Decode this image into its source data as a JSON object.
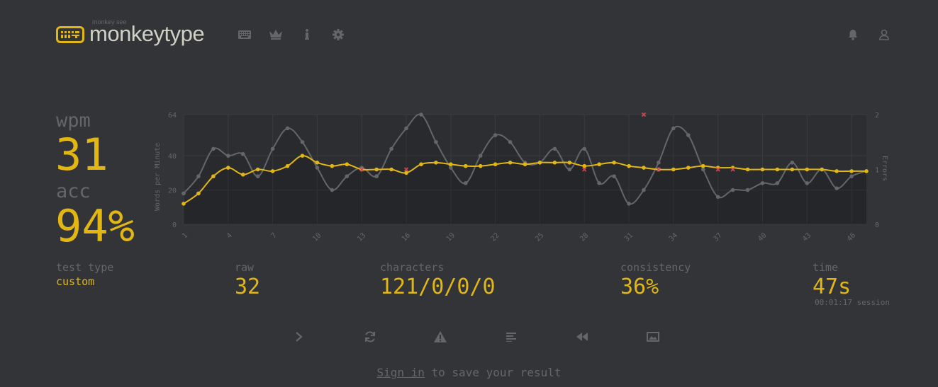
{
  "header": {
    "logo_small": "monkey see",
    "logo_text": "monkeytype",
    "nav": [
      "keyboard-icon",
      "crown-icon",
      "info-icon",
      "gear-icon"
    ],
    "right": [
      "bell-icon",
      "user-icon"
    ]
  },
  "stats": {
    "wpm_label": "wpm",
    "wpm_value": "31",
    "acc_label": "acc",
    "acc_value": "94%",
    "test_type_label": "test type",
    "test_type_value": "custom",
    "raw_label": "raw",
    "raw_value": "32",
    "characters_label": "characters",
    "characters_value": "121/0/0/0",
    "consistency_label": "consistency",
    "consistency_value": "36%",
    "time_label": "time",
    "time_value": "47s",
    "session_text": "00:01:17 session"
  },
  "chart_data": {
    "type": "line",
    "ylabel": "Words per Minute",
    "y2label": "Errors",
    "ylim": [
      0,
      64
    ],
    "y_ticks": [
      0,
      20,
      40,
      64
    ],
    "y2lim": [
      0,
      2
    ],
    "y2_ticks": [
      0,
      1,
      2
    ],
    "x_ticks": [
      1,
      4,
      7,
      10,
      13,
      16,
      19,
      22,
      25,
      28,
      31,
      34,
      37,
      40,
      43,
      46
    ],
    "x": [
      1,
      2,
      3,
      4,
      5,
      6,
      7,
      8,
      9,
      10,
      11,
      12,
      13,
      14,
      15,
      16,
      17,
      18,
      19,
      20,
      21,
      22,
      23,
      24,
      25,
      26,
      27,
      28,
      29,
      30,
      31,
      32,
      33,
      34,
      35,
      36,
      37,
      38,
      39,
      40,
      41,
      42,
      43,
      44,
      45,
      46,
      47
    ],
    "series": [
      {
        "values": [
          18,
          28,
          44,
          40,
          41,
          28,
          44,
          56,
          48,
          33,
          20,
          28,
          33,
          28,
          44,
          56,
          64,
          48,
          33,
          24,
          40,
          52,
          48,
          36,
          36,
          44,
          32,
          44,
          24,
          28,
          12,
          20,
          36,
          56,
          52,
          32,
          16,
          20,
          20,
          24,
          24,
          36,
          24,
          32,
          21,
          28,
          31
        ],
        "color": "#646669"
      },
      {
        "values": [
          12,
          18,
          28,
          33,
          29,
          32,
          31,
          34,
          40,
          36,
          34,
          35,
          32,
          32,
          32,
          30,
          35,
          36,
          35,
          34,
          34,
          35,
          36,
          35,
          36,
          36,
          36,
          34,
          35,
          36,
          34,
          33,
          32,
          32,
          33,
          34,
          33,
          33,
          32,
          32,
          32,
          32,
          32,
          32,
          31,
          31,
          31
        ],
        "color": "#e2b714"
      }
    ],
    "errors": [
      {
        "x": 13,
        "count": 1
      },
      {
        "x": 16,
        "count": 1
      },
      {
        "x": 28,
        "count": 1
      },
      {
        "x": 32,
        "count": 2
      },
      {
        "x": 33,
        "count": 1
      },
      {
        "x": 37,
        "count": 1
      },
      {
        "x": 38,
        "count": 1
      }
    ],
    "error_color": "#ca4754"
  },
  "actions": [
    "next-test-icon",
    "restart-icon",
    "warning-icon",
    "words-history-icon",
    "replay-icon",
    "screenshot-icon"
  ],
  "footer": {
    "signin_link": "Sign in",
    "signin_rest": " to save your result"
  }
}
